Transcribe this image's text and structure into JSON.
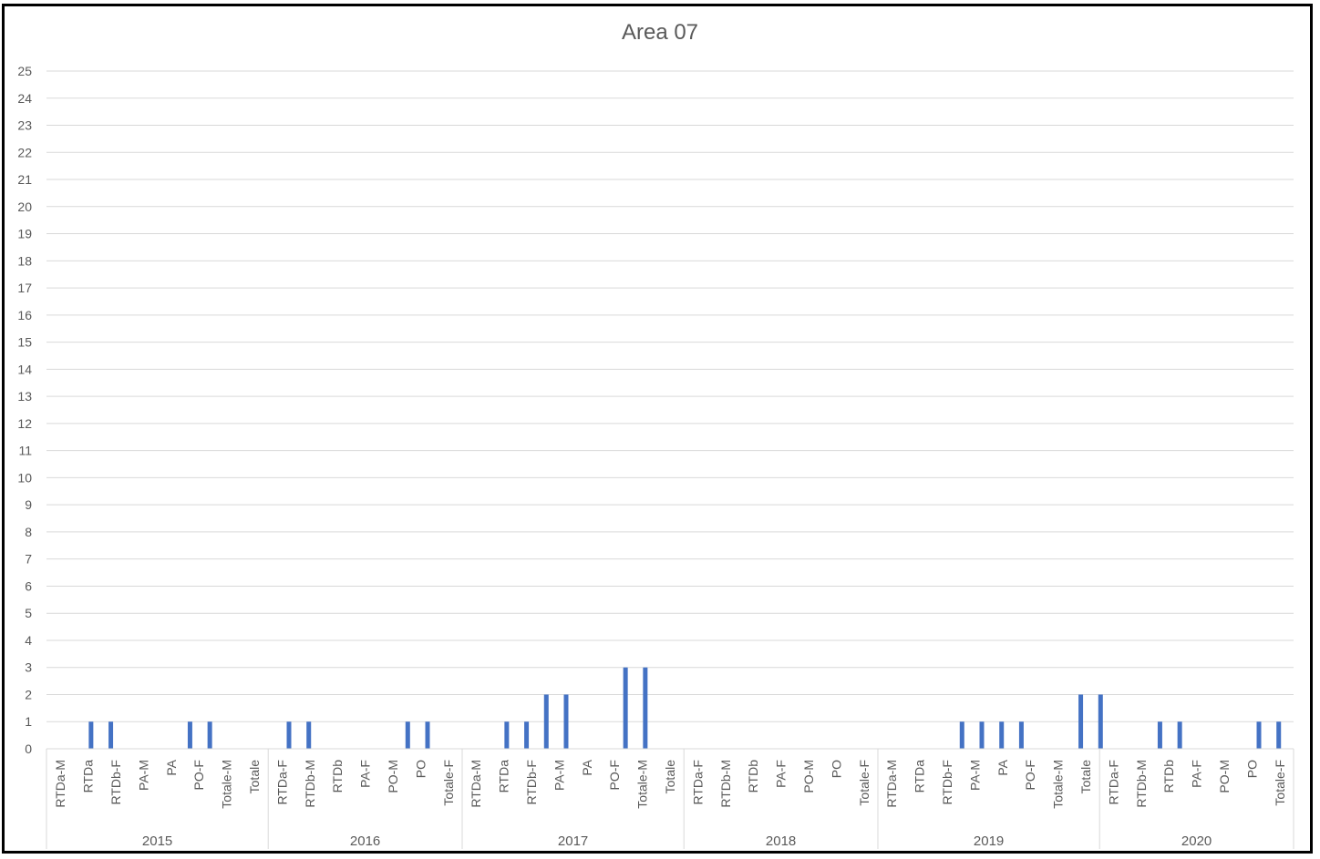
{
  "chart_data": {
    "type": "bar",
    "title": "Area 07",
    "xlabel": "",
    "ylabel": "",
    "ylim": [
      0,
      25
    ],
    "yticks": [
      "0",
      "1",
      "2",
      "3",
      "4",
      "5",
      "6",
      "7",
      "8",
      "9",
      "10",
      "11",
      "12",
      "13",
      "14",
      "15",
      "16",
      "17",
      "18",
      "19",
      "20",
      "21",
      "22",
      "23",
      "24",
      "25"
    ],
    "grid": true,
    "legend": "none",
    "bar_color": "#4472C4",
    "groups": [
      {
        "name": "2015",
        "labels": [
          "RTDa-M",
          "RTDa",
          "RTDb-F",
          "PA-M",
          "PA",
          "PO-F",
          "Totale-M",
          "Totale"
        ]
      },
      {
        "name": "2016",
        "labels": [
          "RTDa-F",
          "RTDb-M",
          "RTDb",
          "PA-F",
          "PO-M",
          "PO",
          "Totale-F"
        ]
      },
      {
        "name": "2017",
        "labels": [
          "RTDa-M",
          "RTDa",
          "RTDb-F",
          "PA-M",
          "PA",
          "PO-F",
          "Totale-M",
          "Totale"
        ]
      },
      {
        "name": "2018",
        "labels": [
          "RTDa-F",
          "RTDb-M",
          "RTDb",
          "PA-F",
          "PO-M",
          "PO",
          "Totale-F"
        ]
      },
      {
        "name": "2019",
        "labels": [
          "RTDa-M",
          "RTDa",
          "RTDb-F",
          "PA-M",
          "PA",
          "PO-F",
          "Totale-M",
          "Totale"
        ]
      },
      {
        "name": "2020",
        "labels": [
          "RTDa-F",
          "RTDb-M",
          "RTDb",
          "PA-F",
          "PO-M",
          "PO",
          "Totale-F"
        ]
      }
    ],
    "values": [
      0,
      0,
      0,
      0,
      1,
      0,
      1,
      0,
      0,
      0,
      0,
      0,
      0,
      0,
      1,
      0,
      1,
      0,
      0,
      0,
      0,
      0,
      0,
      0,
      1,
      0,
      1,
      0,
      0,
      0,
      0,
      0,
      0,
      0,
      0,
      0,
      1,
      0,
      1,
      0,
      0,
      0,
      0,
      0,
      0,
      0,
      1,
      0,
      1,
      0,
      2,
      0,
      2,
      0,
      0,
      0,
      0,
      0,
      3,
      0,
      3,
      0,
      0,
      0,
      0,
      0,
      0,
      0,
      0,
      0,
      0,
      0,
      0,
      0,
      0,
      0,
      0,
      0,
      0,
      0,
      0,
      0,
      0,
      0,
      0,
      0,
      0,
      0,
      0,
      0,
      0,
      0,
      1,
      0,
      1,
      0,
      1,
      0,
      1,
      0,
      0,
      0,
      0,
      0,
      2,
      0,
      2,
      0,
      0,
      0,
      0,
      0,
      1,
      0,
      1,
      0,
      0,
      0,
      0,
      0,
      0,
      0,
      1,
      0,
      1,
      0
    ]
  }
}
